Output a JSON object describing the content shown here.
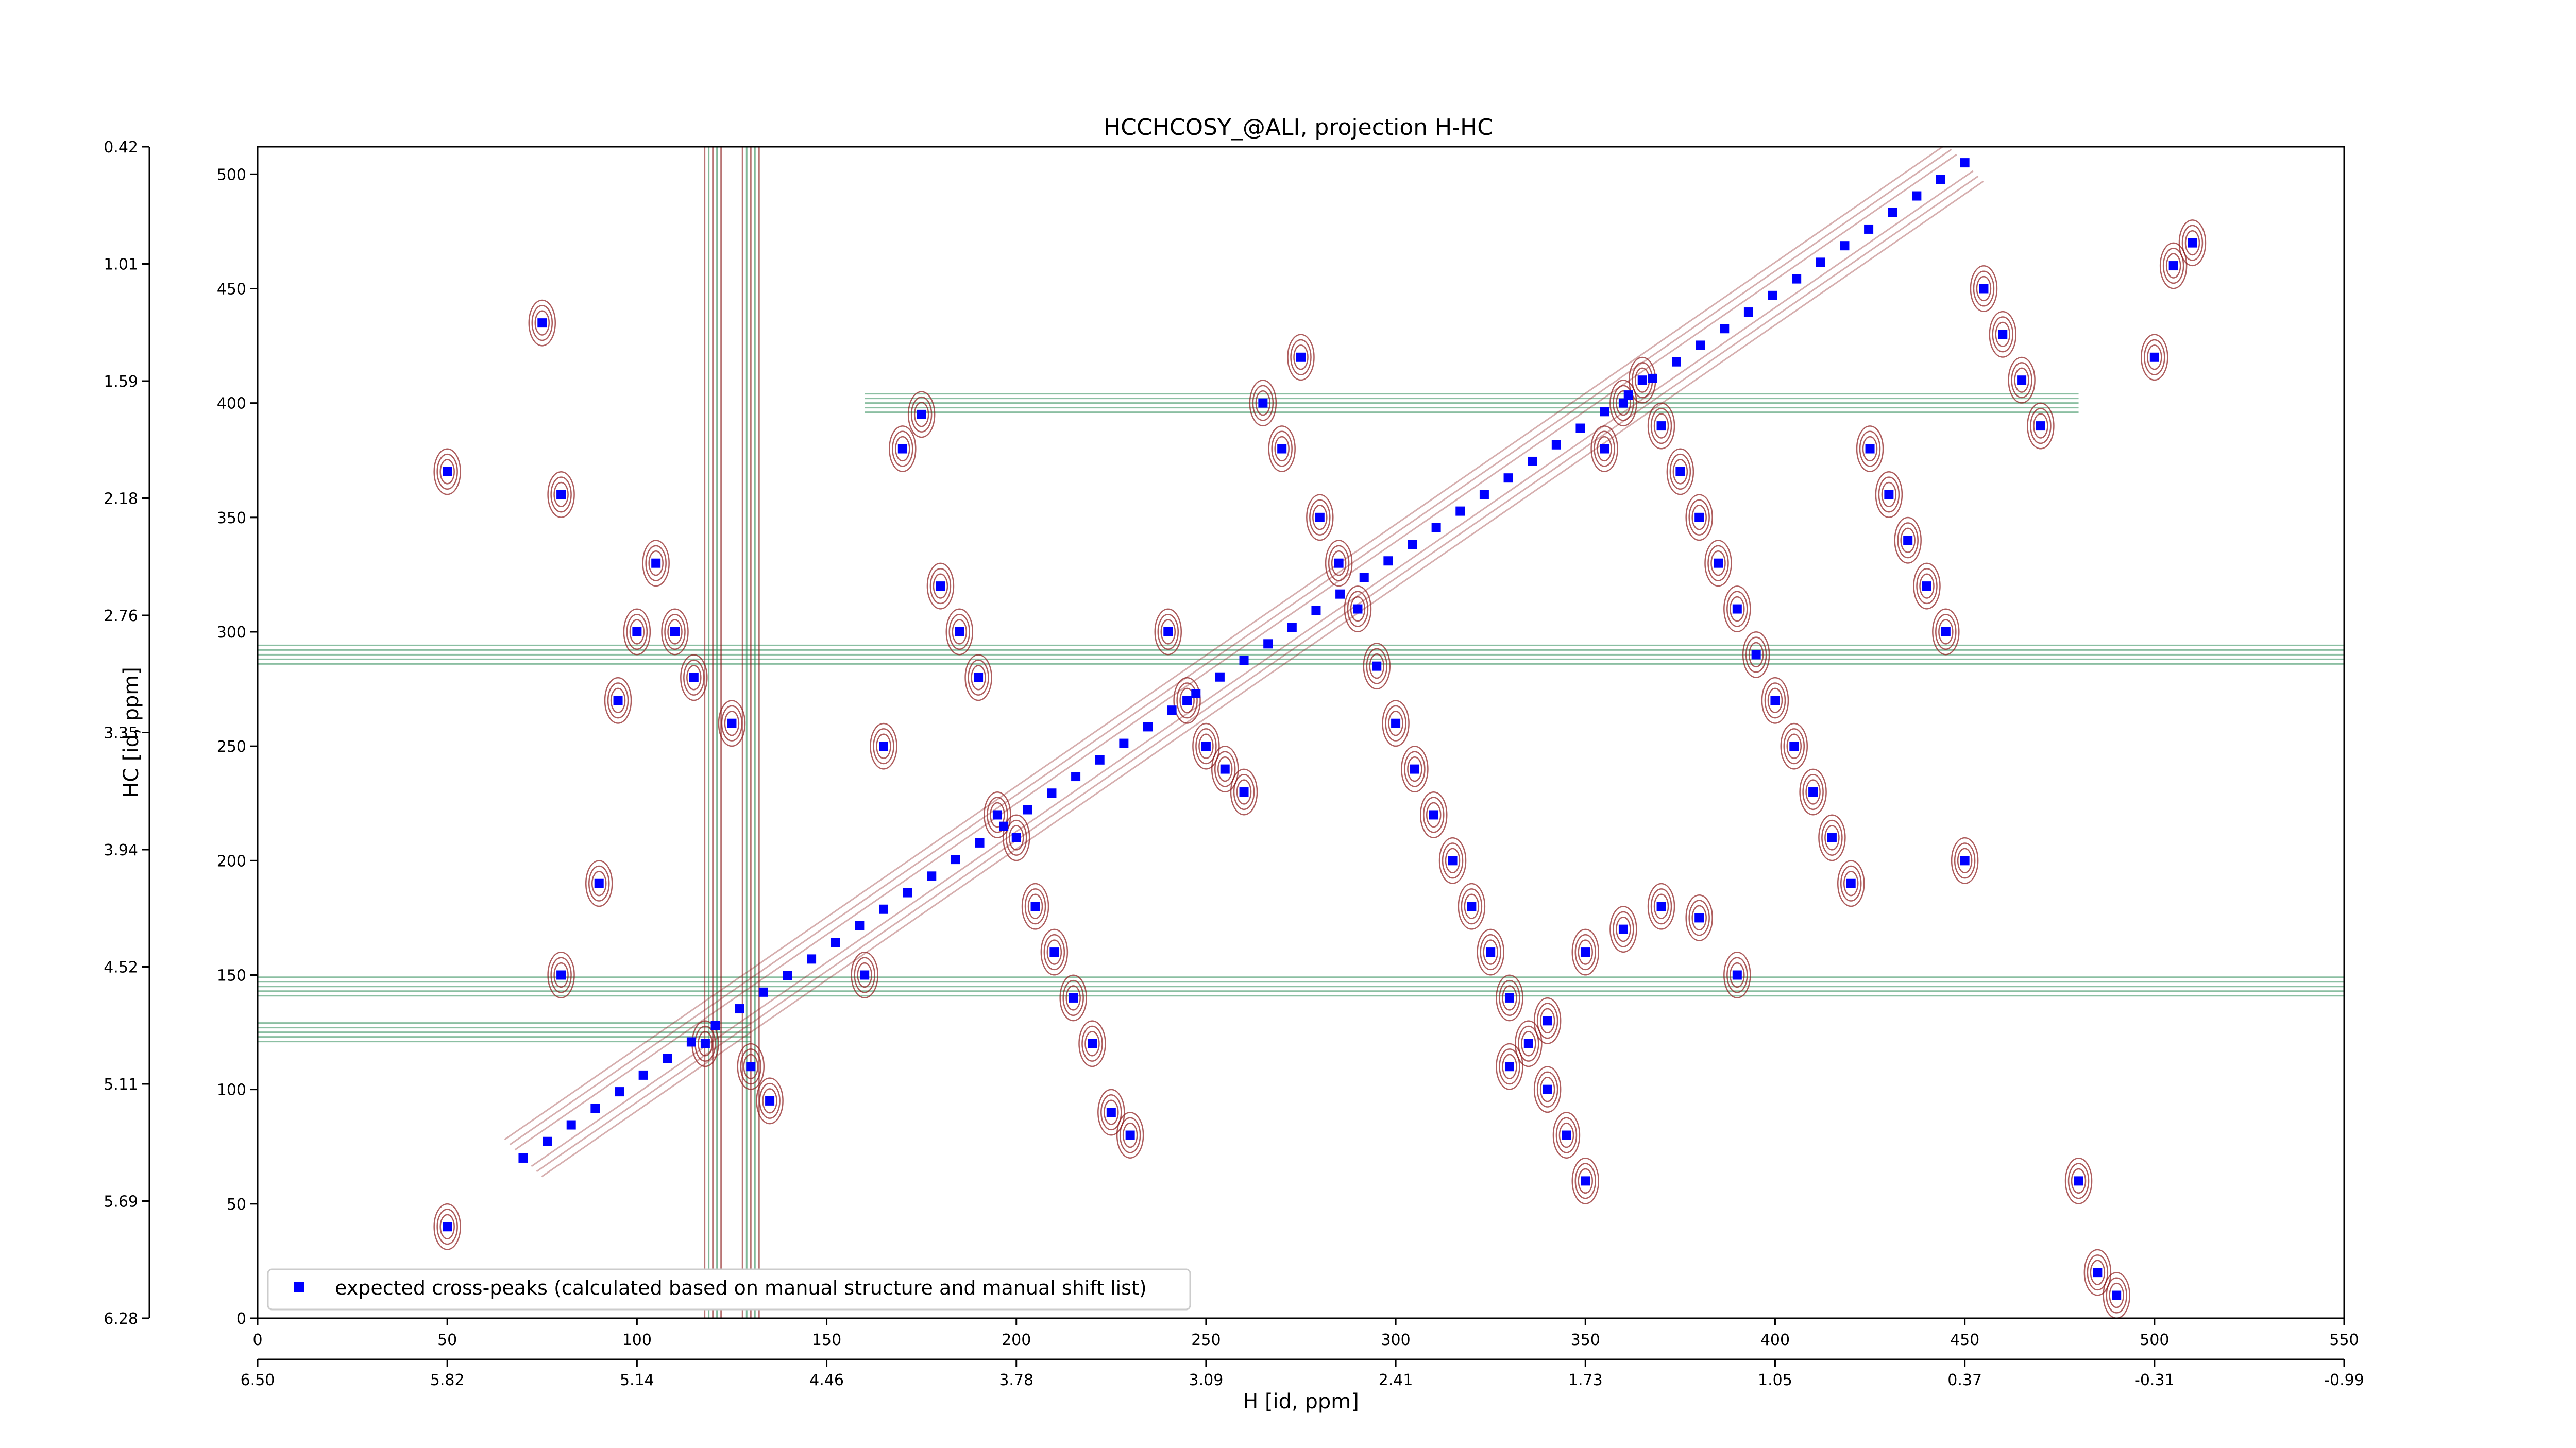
{
  "chart_data": {
    "type": "scatter",
    "title": "HCCHCOSY_@ALI, projection H-HC",
    "xlabel": "H [id, ppm]",
    "ylabel": "HC [id, ppm]",
    "xlim": [
      0,
      550
    ],
    "ylim": [
      0,
      512
    ],
    "x_ticks": [
      "0",
      "50",
      "100",
      "150",
      "200",
      "250",
      "300",
      "350",
      "400",
      "450",
      "500",
      "550"
    ],
    "y_ticks": [
      "0",
      "50",
      "100",
      "150",
      "200",
      "250",
      "300",
      "350",
      "400",
      "450",
      "500"
    ],
    "x_ppm_ticks": [
      "6.50",
      "5.82",
      "5.14",
      "4.46",
      "3.78",
      "3.09",
      "2.41",
      "1.73",
      "1.05",
      "0.37",
      "-0.31",
      "-0.99"
    ],
    "y_ppm_ticks": [
      "6.28",
      "5.69",
      "5.11",
      "4.52",
      "3.94",
      "3.35",
      "2.76",
      "2.18",
      "1.59",
      "1.01",
      "0.42"
    ],
    "legend": {
      "position": "bottom-left",
      "entries": [
        {
          "label": "expected cross-peaks (calculated based on manual structure and manual shift list)",
          "color": "#0000ff",
          "marker": "square"
        }
      ]
    },
    "colors": {
      "positive_contour": "#8b1a1a",
      "negative_contour": "#2e8b57",
      "peak_marker": "#0000ff"
    },
    "grid": false,
    "diagonal": {
      "from": [
        70,
        70
      ],
      "to": [
        450,
        505
      ]
    },
    "horizontal_artifacts": [
      {
        "y": 290,
        "x_from": 0,
        "x_to": 550,
        "sign": "negative"
      },
      {
        "y": 145,
        "x_from": 0,
        "x_to": 550,
        "sign": "negative"
      },
      {
        "y": 125,
        "x_from": 0,
        "x_to": 130,
        "sign": "negative"
      },
      {
        "y": 400,
        "x_from": 160,
        "x_to": 480,
        "sign": "negative"
      }
    ],
    "vertical_artifacts": [
      {
        "x": 120,
        "y_from": 0,
        "y_to": 512
      },
      {
        "x": 130,
        "y_from": 0,
        "y_to": 512
      }
    ],
    "series": [
      {
        "name": "expected cross-peaks (calculated based on manual structure and manual shift list)",
        "points": [
          [
            50,
            40
          ],
          [
            50,
            370
          ],
          [
            75,
            435
          ],
          [
            80,
            150
          ],
          [
            80,
            360
          ],
          [
            90,
            190
          ],
          [
            95,
            270
          ],
          [
            100,
            300
          ],
          [
            105,
            330
          ],
          [
            110,
            300
          ],
          [
            115,
            280
          ],
          [
            118,
            120
          ],
          [
            125,
            260
          ],
          [
            130,
            110
          ],
          [
            135,
            95
          ],
          [
            160,
            150
          ],
          [
            165,
            250
          ],
          [
            170,
            380
          ],
          [
            175,
            395
          ],
          [
            180,
            320
          ],
          [
            185,
            300
          ],
          [
            190,
            280
          ],
          [
            195,
            220
          ],
          [
            200,
            210
          ],
          [
            205,
            180
          ],
          [
            210,
            160
          ],
          [
            215,
            140
          ],
          [
            220,
            120
          ],
          [
            225,
            90
          ],
          [
            230,
            80
          ],
          [
            240,
            300
          ],
          [
            245,
            270
          ],
          [
            250,
            250
          ],
          [
            255,
            240
          ],
          [
            260,
            230
          ],
          [
            265,
            400
          ],
          [
            270,
            380
          ],
          [
            275,
            420
          ],
          [
            280,
            350
          ],
          [
            285,
            330
          ],
          [
            290,
            310
          ],
          [
            295,
            285
          ],
          [
            300,
            260
          ],
          [
            305,
            240
          ],
          [
            310,
            220
          ],
          [
            315,
            200
          ],
          [
            320,
            180
          ],
          [
            325,
            160
          ],
          [
            330,
            140
          ],
          [
            335,
            120
          ],
          [
            340,
            100
          ],
          [
            345,
            80
          ],
          [
            350,
            60
          ],
          [
            355,
            380
          ],
          [
            360,
            400
          ],
          [
            365,
            410
          ],
          [
            370,
            390
          ],
          [
            375,
            370
          ],
          [
            380,
            350
          ],
          [
            385,
            330
          ],
          [
            390,
            310
          ],
          [
            395,
            290
          ],
          [
            400,
            270
          ],
          [
            405,
            250
          ],
          [
            410,
            230
          ],
          [
            415,
            210
          ],
          [
            420,
            190
          ],
          [
            425,
            380
          ],
          [
            430,
            360
          ],
          [
            435,
            340
          ],
          [
            440,
            320
          ],
          [
            445,
            300
          ],
          [
            450,
            200
          ],
          [
            455,
            450
          ],
          [
            460,
            430
          ],
          [
            465,
            410
          ],
          [
            470,
            390
          ],
          [
            480,
            60
          ],
          [
            485,
            20
          ],
          [
            490,
            10
          ],
          [
            500,
            420
          ],
          [
            505,
            460
          ],
          [
            510,
            470
          ],
          [
            350,
            160
          ],
          [
            360,
            170
          ],
          [
            370,
            180
          ],
          [
            380,
            175
          ],
          [
            390,
            150
          ],
          [
            340,
            130
          ],
          [
            330,
            110
          ]
        ]
      }
    ]
  }
}
